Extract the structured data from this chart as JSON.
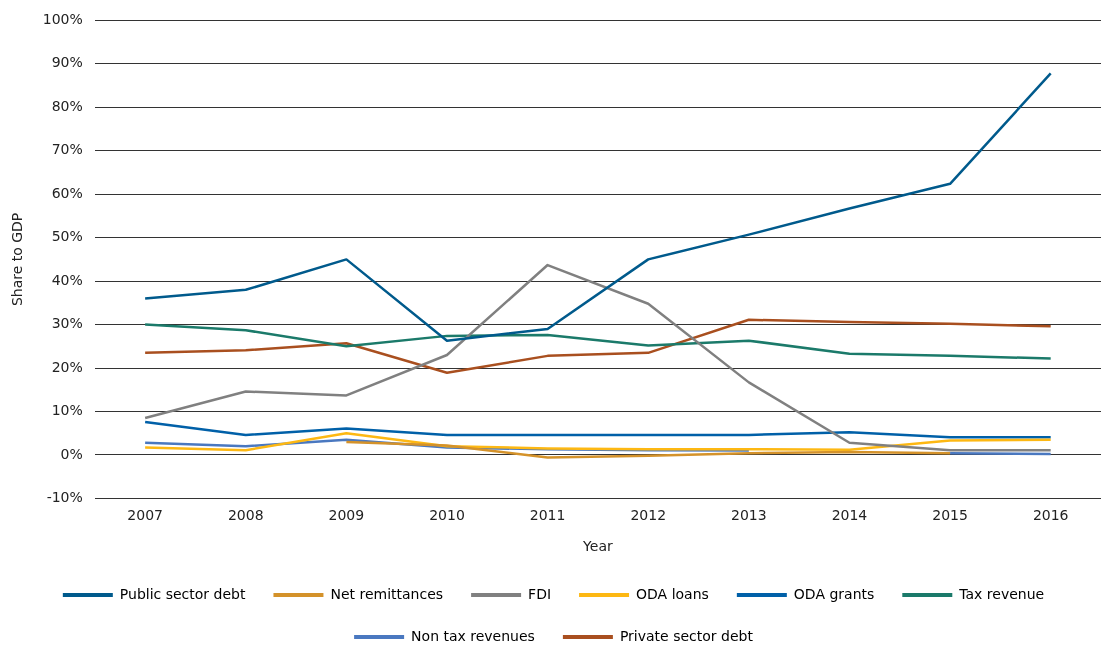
{
  "chart_data": {
    "type": "line",
    "xlabel": "Year",
    "ylabel": "Share to GDP",
    "categories": [
      "2007",
      "2008",
      "2009",
      "2010",
      "2011",
      "2012",
      "2013",
      "2014",
      "2015",
      "2016"
    ],
    "series": [
      {
        "name": "Public sector debt",
        "color": "#005a8c",
        "values": [
          36,
          38,
          45,
          26.3,
          29,
          45,
          50.7,
          56.7,
          62.4,
          87.8
        ]
      },
      {
        "name": "Net remittances",
        "color": "#d4922a",
        "values": [
          null,
          null,
          3,
          2.2,
          -0.6,
          -0.2,
          0.4,
          0.7,
          0.4,
          null
        ]
      },
      {
        "name": "FDI",
        "color": "#808080",
        "values": [
          8.5,
          14.6,
          13.7,
          23,
          43.7,
          34.8,
          16.7,
          2.8,
          1.1,
          1.1
        ]
      },
      {
        "name": "ODA loans",
        "color": "#fdb813",
        "values": [
          1.7,
          1.1,
          5,
          2,
          1.5,
          1.3,
          1.3,
          1.2,
          3.3,
          3.5
        ]
      },
      {
        "name": "ODA grants",
        "color": "#0060a8",
        "values": [
          7.6,
          4.6,
          6.1,
          4.6,
          4.6,
          4.6,
          4.6,
          5.2,
          4.1,
          4.1
        ]
      },
      {
        "name": "Tax revenue",
        "color": "#1b7a6a",
        "values": [
          30,
          28.7,
          25,
          27.4,
          27.6,
          25.2,
          26.3,
          23.3,
          22.8,
          22.2
        ]
      },
      {
        "name": "Non tax revenues",
        "color": "#4a78c0",
        "values": [
          2.8,
          2,
          3.5,
          1.7,
          1.3,
          1.1,
          1,
          null,
          0.4,
          0.2
        ]
      },
      {
        "name": "Private sector debt",
        "color": "#a94f1f",
        "values": [
          23.5,
          24.1,
          25.7,
          18.9,
          22.8,
          23.5,
          31.1,
          30.6,
          30.2,
          29.6
        ]
      }
    ],
    "ylim": [
      -10,
      100
    ],
    "yticks": [
      {
        "value": -10,
        "label": "-10%"
      },
      {
        "value": 0,
        "label": "0%"
      },
      {
        "value": 10,
        "label": "10%"
      },
      {
        "value": 20,
        "label": "20%"
      },
      {
        "value": 30,
        "label": "30%"
      },
      {
        "value": 40,
        "label": "40%"
      },
      {
        "value": 50,
        "label": "50%"
      },
      {
        "value": 60,
        "label": "60%"
      },
      {
        "value": 70,
        "label": "70%"
      },
      {
        "value": 80,
        "label": "80%"
      },
      {
        "value": 90,
        "label": "90%"
      },
      {
        "value": 100,
        "label": "100%"
      }
    ],
    "grid": "y",
    "legend": "bottom",
    "marker": "none",
    "line_style": "solid"
  }
}
